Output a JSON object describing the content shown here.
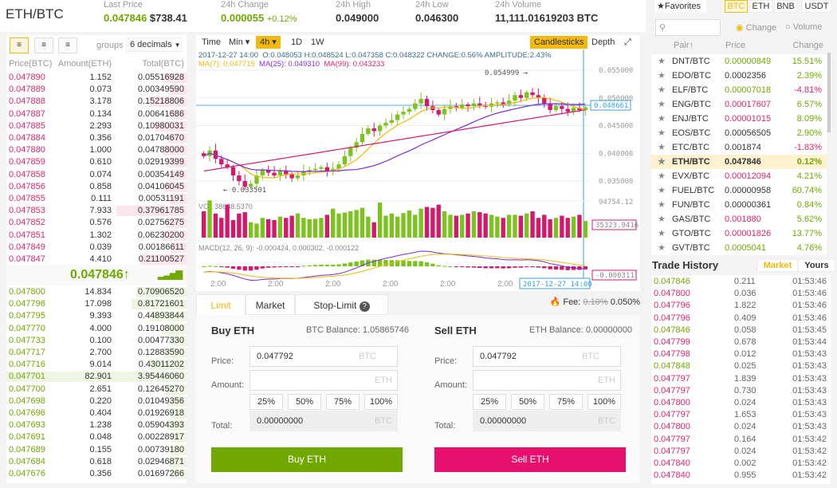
{
  "header": {
    "pair": "ETH/BTC",
    "last_price_label": "Last Price",
    "last_price": "0.047846",
    "last_price_usd": "$738.41",
    "change_label": "24h Change",
    "change": "0.000055",
    "change_pct": "+0.12%",
    "high_label": "24h High",
    "high": "0.049000",
    "low_label": "24h Low",
    "low": "0.046300",
    "volume_label": "24h Volume",
    "volume": "11,111.01619203 BTC"
  },
  "orderbook": {
    "groups_label": "groups",
    "groups_value": "6 decimals",
    "col_price": "Price(BTC)",
    "col_amount": "Amount(ETH)",
    "col_total": "Total(BTC)",
    "last": "0.047846",
    "last_arrow": "↑",
    "asks": [
      [
        "0.047890",
        "1.152",
        "0.05516928"
      ],
      [
        "0.047889",
        "0.073",
        "0.00349590"
      ],
      [
        "0.047888",
        "3.178",
        "0.15218806"
      ],
      [
        "0.047887",
        "0.134",
        "0.00641686"
      ],
      [
        "0.047885",
        "2.293",
        "0.10980031"
      ],
      [
        "0.047884",
        "0.356",
        "0.01704670"
      ],
      [
        "0.047880",
        "1.000",
        "0.04788000"
      ],
      [
        "0.047859",
        "0.610",
        "0.02919399"
      ],
      [
        "0.047858",
        "0.074",
        "0.00354149"
      ],
      [
        "0.047856",
        "0.858",
        "0.04106045"
      ],
      [
        "0.047855",
        "0.111",
        "0.00531191"
      ],
      [
        "0.047853",
        "7.933",
        "0.37961785"
      ],
      [
        "0.047852",
        "0.576",
        "0.02756275"
      ],
      [
        "0.047851",
        "1.302",
        "0.06230200"
      ],
      [
        "0.047849",
        "0.039",
        "0.00186611"
      ],
      [
        "0.047847",
        "4.410",
        "0.21100527"
      ]
    ],
    "bids": [
      [
        "0.047800",
        "14.834",
        "0.70906520"
      ],
      [
        "0.047796",
        "17.098",
        "0.81721601"
      ],
      [
        "0.047795",
        "9.393",
        "0.44893844"
      ],
      [
        "0.047770",
        "4.000",
        "0.19108000"
      ],
      [
        "0.047733",
        "0.100",
        "0.00477330"
      ],
      [
        "0.047717",
        "2.700",
        "0.12883590"
      ],
      [
        "0.047716",
        "9.014",
        "0.43011202"
      ],
      [
        "0.047701",
        "82.901",
        "3.95446060"
      ],
      [
        "0.047700",
        "2.651",
        "0.12645270"
      ],
      [
        "0.047698",
        "0.220",
        "0.01049356"
      ],
      [
        "0.047696",
        "0.404",
        "0.01926918"
      ],
      [
        "0.047693",
        "1.238",
        "0.05904393"
      ],
      [
        "0.047691",
        "0.048",
        "0.00228917"
      ],
      [
        "0.047689",
        "0.155",
        "0.00739180"
      ],
      [
        "0.047684",
        "0.618",
        "0.02946871"
      ],
      [
        "0.047676",
        "0.356",
        "0.01697266"
      ]
    ]
  },
  "chart": {
    "toolbar": {
      "time": "Time",
      "min": "Min ▾",
      "h4": "4h ▾",
      "d1": "1D",
      "w1": "1W",
      "candles": "Candlesticks",
      "depth": "Depth"
    },
    "ohlc": "2017-12-27 14:00  O:0.048053 H:0.048524 L:0.047358 C:0.048322 CHANGE:0.56% AMPLITUDE:2.43%",
    "ma7": "MA(7): 0.047715",
    "ma25": "MA(25): 0.049310",
    "ma99": "MA(99): 0.043233",
    "price_ticks": [
      "0.055000",
      "0.050000",
      "0.045000",
      "0.040000",
      "0.035000"
    ],
    "current_price_tag": "0.048661",
    "high_marker": "0.054999 →",
    "low_marker": "← 0.033501",
    "vol_label": "VOL 38638.5370",
    "vol_max": "94754.12",
    "vol_tag": "35323.9416",
    "macd_label": "MACD(12, 26, 9): -0.000424, 0.000302, -0.000122",
    "macd_tag": "-0.000311",
    "time_ticks": [
      "2:00",
      "2:00",
      "2:00",
      "2:00",
      "2:00",
      "2:00"
    ],
    "cursor_time": "2017-12-27 14:00",
    "closes": [
      0.0395,
      0.0405,
      0.039,
      0.038,
      0.0375,
      0.036,
      0.035,
      0.034,
      0.0345,
      0.036,
      0.037,
      0.0365,
      0.036,
      0.0368,
      0.0362,
      0.0355,
      0.036,
      0.0368,
      0.037,
      0.0372,
      0.0375,
      0.0368,
      0.0372,
      0.038,
      0.0395,
      0.041,
      0.042,
      0.0435,
      0.0445,
      0.044,
      0.045,
      0.0455,
      0.046,
      0.047,
      0.0475,
      0.048,
      0.049,
      0.0498,
      0.0485,
      0.0478,
      0.047,
      0.048,
      0.0485,
      0.0482,
      0.0488,
      0.0485,
      0.049,
      0.0487,
      0.0484,
      0.049,
      0.0492,
      0.0488,
      0.0495,
      0.0505,
      0.05,
      0.051,
      0.0505,
      0.05,
      0.049,
      0.0478,
      0.0485,
      0.048,
      0.0475,
      0.0482,
      0.0478,
      0.0483
    ],
    "volumes": [
      60,
      85,
      55,
      45,
      75,
      40,
      55,
      58,
      35,
      32,
      45,
      42,
      40,
      48,
      45,
      50,
      55,
      45,
      42,
      43,
      45,
      52,
      66,
      55,
      57,
      60,
      63,
      68,
      48,
      35,
      80,
      50,
      55,
      48,
      56,
      62,
      52,
      66,
      70,
      68,
      75,
      60,
      52,
      50,
      52,
      55,
      60,
      58,
      55,
      52,
      48,
      45,
      52,
      52,
      50,
      55,
      60,
      45,
      52,
      42,
      45,
      50,
      45,
      48,
      52,
      38
    ]
  },
  "form": {
    "tabs": [
      "Limit",
      "Market",
      "Stop-Limit"
    ],
    "fee_label": "Fee:",
    "fee_old": "0.10%",
    "fee_new": "0.050%",
    "buy": {
      "title": "Buy ETH",
      "balance": "BTC Balance: 1.05865746",
      "price_label": "Price:",
      "price": "0.047792",
      "price_unit": "BTC",
      "amount_label": "Amount:",
      "amount_unit": "ETH",
      "pcts": [
        "25%",
        "50%",
        "75%",
        "100%"
      ],
      "total_label": "Total:",
      "total": "0.00000000",
      "total_unit": "BTC",
      "button": "Buy ETH"
    },
    "sell": {
      "title": "Sell ETH",
      "balance": "ETH Balance: 0.00000000",
      "price_label": "Price:",
      "price": "0.047792",
      "price_unit": "BTC",
      "amount_label": "Amount:",
      "amount_unit": "ETH",
      "pcts": [
        "25%",
        "50%",
        "75%",
        "100%"
      ],
      "total_label": "Total:",
      "total": "0.00000000",
      "total_unit": "BTC",
      "button": "Sell ETH"
    }
  },
  "markets": {
    "favorites": "Favorites",
    "tabs": [
      "BTC",
      "ETH",
      "BNB",
      "USDT"
    ],
    "radio_change": "Change",
    "radio_volume": "Volume",
    "col_pair": "Pair↑",
    "col_price": "Price",
    "col_change": "Change",
    "pairs": [
      [
        "DNT/BTC",
        "0.00000849",
        "15.51%",
        "g"
      ],
      [
        "EDO/BTC",
        "0.0002356",
        "2.39%",
        "n"
      ],
      [
        "ELF/BTC",
        "0.00007018",
        "-4.81%",
        "g"
      ],
      [
        "ENG/BTC",
        "0.00017607",
        "6.57%",
        "r"
      ],
      [
        "ENJ/BTC",
        "0.00001015",
        "8.09%",
        "r"
      ],
      [
        "EOS/BTC",
        "0.00056505",
        "2.90%",
        "n"
      ],
      [
        "ETC/BTC",
        "0.001874",
        "-1.83%",
        "n"
      ],
      [
        "ETH/BTC",
        "0.047846",
        "0.12%",
        "s"
      ],
      [
        "EVX/BTC",
        "0.00012094",
        "4.21%",
        "r"
      ],
      [
        "FUEL/BTC",
        "0.00000958",
        "60.74%",
        "n"
      ],
      [
        "FUN/BTC",
        "0.00000361",
        "0.84%",
        "n"
      ],
      [
        "GAS/BTC",
        "0.001880",
        "5.62%",
        "r"
      ],
      [
        "GTO/BTC",
        "0.00001826",
        "13.77%",
        "r"
      ],
      [
        "GVT/BTC",
        "0.0005041",
        "4.76%",
        "g"
      ]
    ]
  },
  "trades": {
    "title": "Trade History",
    "tab_market": "Market",
    "tab_yours": "Yours",
    "rows": [
      [
        "0.047846",
        "0.211",
        "01:53:46",
        "g"
      ],
      [
        "0.047800",
        "0.036",
        "01:53:46",
        "r"
      ],
      [
        "0.047796",
        "1.822",
        "01:53:46",
        "r"
      ],
      [
        "0.047796",
        "0.409",
        "01:53:46",
        "r"
      ],
      [
        "0.047846",
        "0.058",
        "01:53:45",
        "g"
      ],
      [
        "0.047799",
        "0.678",
        "01:53:44",
        "r"
      ],
      [
        "0.047798",
        "0.012",
        "01:53:43",
        "r"
      ],
      [
        "0.047848",
        "0.025",
        "01:53:43",
        "g"
      ],
      [
        "0.047797",
        "1.839",
        "01:53:43",
        "r"
      ],
      [
        "0.047797",
        "0.730",
        "01:53:43",
        "r"
      ],
      [
        "0.047800",
        "0.024",
        "01:53:43",
        "r"
      ],
      [
        "0.047797",
        "1.653",
        "01:53:43",
        "r"
      ],
      [
        "0.047800",
        "0.024",
        "01:53:43",
        "r"
      ],
      [
        "0.047797",
        "0.164",
        "01:53:42",
        "r"
      ],
      [
        "0.047797",
        "0.024",
        "01:53:42",
        "r"
      ],
      [
        "0.047840",
        "0.002",
        "01:53:42",
        "r"
      ],
      [
        "0.047840",
        "0.955",
        "01:53:42",
        "r"
      ]
    ]
  }
}
